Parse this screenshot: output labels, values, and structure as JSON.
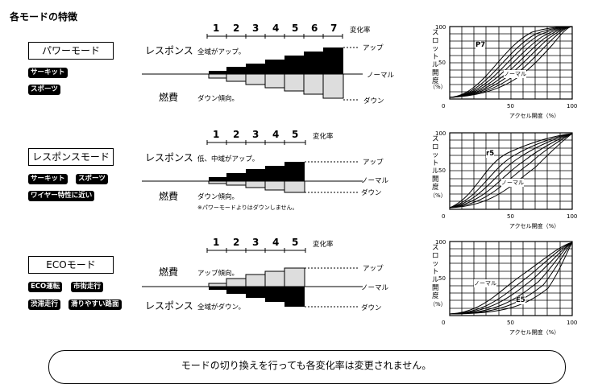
{
  "title": "各モードの特徴",
  "common": {
    "axis_ylabel": "スロットル開度",
    "axis_yunit": "（%）",
    "axis_xlabel": "アクセル開度（%）",
    "tick_0": "0",
    "tick_50": "50",
    "tick_100": "100",
    "henka": "変化率",
    "up": "アップ",
    "normal": "ノーマル",
    "down": "ダウン"
  },
  "modes": [
    {
      "name": "パワーモード",
      "tags": [
        "サーキット",
        "スポーツ"
      ],
      "top_label": "レスポンス",
      "top_note": "全域がアップ。",
      "bottom_label": "燃費",
      "bottom_note": "ダウン傾向。",
      "extra_note": "",
      "steps": [
        "1",
        "2",
        "3",
        "4",
        "5",
        "6",
        "7"
      ],
      "curve_label": "P7",
      "normal_label": "ノーマル"
    },
    {
      "name": "レスポンスモード",
      "tags": [
        "サーキット",
        "スポーツ",
        "ワイヤー特性に近い"
      ],
      "top_label": "レスポンス",
      "top_note": "低、中域がアップ。",
      "bottom_label": "燃費",
      "bottom_note": "ダウン傾向。",
      "extra_note": "※パワーモードよりはダウンしません。",
      "steps": [
        "1",
        "2",
        "3",
        "4",
        "5"
      ],
      "curve_label": "r5",
      "normal_label": "ノーマル"
    },
    {
      "name": "ECOモード",
      "tags": [
        "ECO運転",
        "市街走行",
        "渋滞走行",
        "滑りやすい路面"
      ],
      "top_label": "燃費",
      "top_note": "アップ傾向。",
      "bottom_label": "レスポンス",
      "bottom_note": "全域がダウン。",
      "extra_note": "",
      "steps": [
        "1",
        "2",
        "3",
        "4",
        "5"
      ],
      "curve_label": "E5",
      "normal_label": "ノーマル"
    }
  ],
  "footer": "モードの切り換えを行っても各変化率は変更されません。"
}
